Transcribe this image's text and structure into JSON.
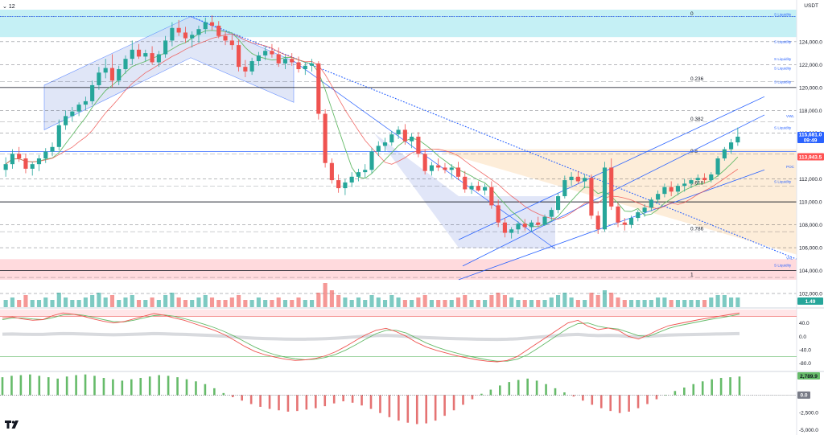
{
  "header": {
    "interval": "12",
    "quote_currency": "USDT"
  },
  "colors": {
    "up": "#26a69a",
    "down": "#ef5350",
    "sma": "#66bb6a",
    "ema": "#ef5350",
    "trend": "#2962ff",
    "level": "#131722",
    "zone_top": "#b2ebf2",
    "zone_bottom": "#ffcdd2",
    "channel_fill": "#d4dcf5",
    "fib_fill": "#fde8d0",
    "macd_up": "#66bb6a",
    "macd_down": "#e57373"
  },
  "chart_data": {
    "type": "candlestick",
    "price_axis": {
      "min": 102000,
      "max": 126800,
      "ticks": [
        "124,000.0",
        "122,000.0",
        "120,000.0",
        "118,000.0",
        "116,000.0",
        "112,000.0",
        "110,000.0",
        "108,000.0",
        "106,000.0",
        "104,000.0",
        "102,000.0"
      ],
      "tick_values": [
        124000,
        122000,
        120000,
        118000,
        116000,
        112000,
        110000,
        108000,
        106000,
        104000,
        102000
      ]
    },
    "candles": [
      [
        112800,
        113900,
        112200,
        113300
      ],
      [
        113300,
        114600,
        112900,
        114200
      ],
      [
        114200,
        114800,
        113500,
        113800
      ],
      [
        113800,
        114200,
        112500,
        112900
      ],
      [
        112900,
        113500,
        112300,
        113300
      ],
      [
        113300,
        114100,
        112700,
        113800
      ],
      [
        113800,
        114700,
        113400,
        114400
      ],
      [
        114400,
        115200,
        114000,
        114800
      ],
      [
        114800,
        117200,
        114500,
        116700
      ],
      [
        116700,
        118000,
        116300,
        117500
      ],
      [
        117500,
        118300,
        117000,
        117900
      ],
      [
        117900,
        118700,
        117500,
        118500
      ],
      [
        118500,
        119200,
        118000,
        118800
      ],
      [
        118800,
        120600,
        118500,
        120200
      ],
      [
        120200,
        121800,
        119800,
        121300
      ],
      [
        121300,
        122500,
        120800,
        121700
      ],
      [
        121700,
        122900,
        120000,
        120600
      ],
      [
        120600,
        121900,
        120200,
        121600
      ],
      [
        121600,
        122800,
        121200,
        122500
      ],
      [
        122500,
        124100,
        122000,
        123300
      ],
      [
        123300,
        123800,
        122500,
        122700
      ],
      [
        122700,
        123300,
        122300,
        123000
      ],
      [
        123000,
        123600,
        122000,
        122200
      ],
      [
        122200,
        123200,
        121800,
        122900
      ],
      [
        122900,
        124500,
        122600,
        124100
      ],
      [
        124100,
        125700,
        123600,
        125200
      ],
      [
        125200,
        125900,
        124500,
        124800
      ],
      [
        124800,
        125300,
        123900,
        124300
      ],
      [
        124300,
        124900,
        123500,
        124600
      ],
      [
        124600,
        125400,
        123900,
        125100
      ],
      [
        125100,
        126100,
        124700,
        125700
      ],
      [
        125700,
        126300,
        125000,
        125400
      ],
      [
        125400,
        125800,
        124300,
        124500
      ],
      [
        124500,
        124900,
        123700,
        124100
      ],
      [
        124100,
        124600,
        123300,
        123700
      ],
      [
        123700,
        124200,
        121400,
        121800
      ],
      [
        121800,
        122400,
        120900,
        121400
      ],
      [
        121400,
        122600,
        121100,
        122300
      ],
      [
        122300,
        123100,
        121900,
        122800
      ],
      [
        122800,
        123600,
        122400,
        123200
      ],
      [
        123200,
        123800,
        122600,
        122900
      ],
      [
        122900,
        123500,
        121800,
        122100
      ],
      [
        122100,
        122800,
        121600,
        122500
      ],
      [
        122500,
        123000,
        121900,
        122200
      ],
      [
        122200,
        122700,
        121300,
        121600
      ],
      [
        121600,
        122200,
        121100,
        121900
      ],
      [
        121900,
        122500,
        121400,
        122100
      ],
      [
        122100,
        122300,
        117200,
        117700
      ],
      [
        117700,
        118100,
        113000,
        113400
      ],
      [
        113400,
        113800,
        111600,
        111900
      ],
      [
        111900,
        112400,
        110800,
        111200
      ],
      [
        111200,
        112000,
        110600,
        111700
      ],
      [
        111700,
        112600,
        111300,
        112200
      ],
      [
        112200,
        112900,
        111800,
        112600
      ],
      [
        112600,
        113300,
        112100,
        112800
      ],
      [
        112800,
        114700,
        112500,
        114400
      ],
      [
        114400,
        115300,
        114000,
        114900
      ],
      [
        114900,
        115600,
        114400,
        115200
      ],
      [
        115200,
        116200,
        114900,
        115900
      ],
      [
        115900,
        116600,
        115500,
        116300
      ],
      [
        116300,
        116800,
        115000,
        115300
      ],
      [
        115300,
        116000,
        114700,
        115700
      ],
      [
        115700,
        116100,
        113900,
        114200
      ],
      [
        114200,
        114600,
        112400,
        112700
      ],
      [
        112700,
        113500,
        112300,
        113200
      ],
      [
        113200,
        113800,
        112700,
        113000
      ],
      [
        113000,
        113400,
        112500,
        112800
      ],
      [
        112800,
        113300,
        112100,
        113000
      ],
      [
        113000,
        113500,
        111900,
        112200
      ],
      [
        112200,
        112700,
        110800,
        111100
      ],
      [
        111100,
        111700,
        110700,
        111400
      ],
      [
        111400,
        111800,
        110900,
        111000
      ],
      [
        111000,
        111600,
        110600,
        111300
      ],
      [
        111300,
        111800,
        109400,
        109700
      ],
      [
        109700,
        110200,
        107800,
        108200
      ],
      [
        108200,
        108600,
        106900,
        107300
      ],
      [
        107300,
        107800,
        106800,
        107600
      ],
      [
        107600,
        108300,
        107200,
        108100
      ],
      [
        108100,
        108500,
        107500,
        107800
      ],
      [
        107800,
        108400,
        107400,
        108200
      ],
      [
        108200,
        108700,
        107800,
        108000
      ],
      [
        108000,
        108900,
        107900,
        108700
      ],
      [
        108700,
        109500,
        108400,
        109300
      ],
      [
        109300,
        110800,
        109000,
        110500
      ],
      [
        110500,
        112300,
        110300,
        111900
      ],
      [
        111900,
        112600,
        111400,
        112200
      ],
      [
        112200,
        112700,
        111600,
        111800
      ],
      [
        111800,
        112400,
        111200,
        112100
      ],
      [
        112100,
        112400,
        108500,
        108800
      ],
      [
        108800,
        109200,
        107200,
        107600
      ],
      [
        107600,
        113500,
        107400,
        113000
      ],
      [
        113000,
        113800,
        109300,
        109600
      ],
      [
        109600,
        109900,
        107800,
        108200
      ],
      [
        108200,
        108600,
        107500,
        108000
      ],
      [
        108000,
        108800,
        107700,
        108600
      ],
      [
        108600,
        109300,
        108300,
        109100
      ],
      [
        109100,
        109800,
        108700,
        109500
      ],
      [
        109500,
        110400,
        109200,
        110200
      ],
      [
        110200,
        111000,
        109900,
        110700
      ],
      [
        110700,
        111600,
        110400,
        111300
      ],
      [
        111300,
        111800,
        110500,
        110900
      ],
      [
        110900,
        111600,
        110600,
        111400
      ],
      [
        111400,
        112000,
        110900,
        111600
      ],
      [
        111600,
        112100,
        111200,
        111900
      ],
      [
        111900,
        112400,
        111500,
        112100
      ],
      [
        112100,
        112500,
        111600,
        111900
      ],
      [
        111900,
        112600,
        111700,
        112400
      ],
      [
        112400,
        114000,
        112200,
        113800
      ],
      [
        113800,
        114800,
        113600,
        114600
      ],
      [
        114600,
        115500,
        114200,
        115200
      ],
      [
        115200,
        116500,
        114900,
        115700
      ]
    ],
    "volumes": [
      3,
      4,
      3,
      5,
      3,
      3,
      4,
      3,
      6,
      4,
      3,
      3,
      4,
      5,
      6,
      4,
      5,
      3,
      4,
      5,
      3,
      3,
      4,
      3,
      5,
      6,
      4,
      3,
      3,
      4,
      5,
      4,
      3,
      3,
      4,
      5,
      3,
      3,
      4,
      3,
      3,
      4,
      3,
      3,
      4,
      3,
      3,
      6,
      10,
      7,
      5,
      4,
      3,
      4,
      3,
      5,
      4,
      3,
      5,
      4,
      3,
      3,
      4,
      5,
      3,
      3,
      3,
      3,
      4,
      5,
      3,
      3,
      3,
      5,
      6,
      5,
      4,
      3,
      3,
      3,
      3,
      3,
      4,
      5,
      6,
      4,
      3,
      3,
      6,
      5,
      7,
      6,
      4,
      3,
      3,
      3,
      3,
      3,
      4,
      4,
      3,
      3,
      3,
      3,
      3,
      3,
      4,
      5,
      5,
      4,
      4
    ],
    "volume_label": "1.49",
    "price_level_lines": [
      124000,
      122000,
      120000,
      118000,
      116000,
      112000,
      110000,
      108000,
      106000,
      104000,
      102000
    ],
    "fib_levels": [
      {
        "label": "0",
        "value": 126200
      },
      {
        "label": "0.236",
        "value": 120500
      },
      {
        "label": "0.382",
        "value": 117000
      },
      {
        "label": "0.5",
        "value": 114200
      },
      {
        "label": "0.618",
        "value": 111400
      },
      {
        "label": "0.786",
        "value": 107400
      },
      {
        "label": "1",
        "value": 103400
      }
    ],
    "liquidity_labels": [
      {
        "text": "S Liquidity",
        "value": 126200
      },
      {
        "text": "S Liquidity",
        "value": 123800
      },
      {
        "text": "S Liquidity",
        "value": 122300
      },
      {
        "text": "S Liquidity",
        "value": 121500
      },
      {
        "text": "S Liquidity",
        "value": 120300
      },
      {
        "text": "S Liquidity",
        "value": 116300
      },
      {
        "text": "S Liquidity",
        "value": 111600
      },
      {
        "text": "S Liquidity",
        "value": 104300
      }
    ],
    "small_labels": [
      {
        "text": "VWL",
        "value": 117300
      },
      {
        "text": "POC",
        "value": 112900
      },
      {
        "text": "VAL",
        "value": 104900
      }
    ],
    "current_price": {
      "price": "115,681.0",
      "countdown": "09:49"
    },
    "red_badge": "113,943.5",
    "osc_axis": {
      "ticks": [
        "40.0",
        "0.0",
        "-40.0",
        "-80.0"
      ],
      "values": [
        40,
        0,
        -40,
        -80
      ],
      "min": -100,
      "max": 80
    },
    "osc_k": [
      55,
      58,
      52,
      48,
      50,
      62,
      70,
      66,
      60,
      52,
      45,
      40,
      44,
      52,
      60,
      68,
      63,
      55,
      48,
      38,
      28,
      18,
      5,
      -12,
      -30,
      -45,
      -55,
      -62,
      -68,
      -72,
      -70,
      -66,
      -58,
      -46,
      -30,
      -12,
      5,
      18,
      24,
      14,
      0,
      -18,
      -32,
      -42,
      -50,
      -58,
      -64,
      -70,
      -74,
      -76,
      -72,
      -60,
      -40,
      -20,
      0,
      20,
      40,
      48,
      30,
      20,
      25,
      18,
      0,
      -8,
      5,
      20,
      32,
      38,
      44,
      50,
      55,
      60,
      65,
      70
    ],
    "osc_d": [
      50,
      55,
      55,
      52,
      50,
      56,
      64,
      66,
      63,
      57,
      50,
      44,
      43,
      48,
      55,
      62,
      64,
      60,
      53,
      45,
      36,
      26,
      14,
      0,
      -16,
      -32,
      -45,
      -55,
      -62,
      -67,
      -70,
      -68,
      -63,
      -54,
      -41,
      -25,
      -8,
      8,
      18,
      18,
      10,
      -5,
      -20,
      -32,
      -42,
      -50,
      -58,
      -64,
      -70,
      -74,
      -74,
      -68,
      -55,
      -36,
      -16,
      4,
      24,
      38,
      40,
      30,
      25,
      22,
      12,
      2,
      0,
      12,
      24,
      32,
      38,
      44,
      50,
      55,
      60,
      66
    ],
    "macd_axis": {
      "ticks": [
        "-2,500.0",
        "-5,000.0"
      ],
      "values": [
        -2500,
        -5000
      ],
      "min": -5200,
      "max": 3200
    },
    "macd_label": "2,789.9",
    "signal_label": "0.0",
    "macd_hist": [
      2600,
      2800,
      2900,
      3000,
      2800,
      2600,
      2400,
      2700,
      2900,
      3000,
      2800,
      2500,
      2300,
      2100,
      2300,
      2500,
      2700,
      2900,
      2800,
      2600,
      2300,
      2000,
      1600,
      1000,
      300,
      -300,
      -800,
      -1300,
      -1700,
      -2000,
      -2200,
      -2400,
      -2300,
      -2100,
      -1900,
      -1600,
      -1200,
      -900,
      -1100,
      -1500,
      -2000,
      -2600,
      -3200,
      -3700,
      -4000,
      -4200,
      -4100,
      -3700,
      -3000,
      -2200,
      -1400,
      -600,
      200,
      800,
      1400,
      1900,
      2200,
      2400,
      2100,
      1600,
      1000,
      400,
      -200,
      -800,
      -1400,
      -1900,
      -2300,
      -2600,
      -2400,
      -1900,
      -1300,
      -600,
      0,
      600,
      1100,
      1600,
      2000,
      2300,
      2500,
      2600,
      2700
    ]
  }
}
